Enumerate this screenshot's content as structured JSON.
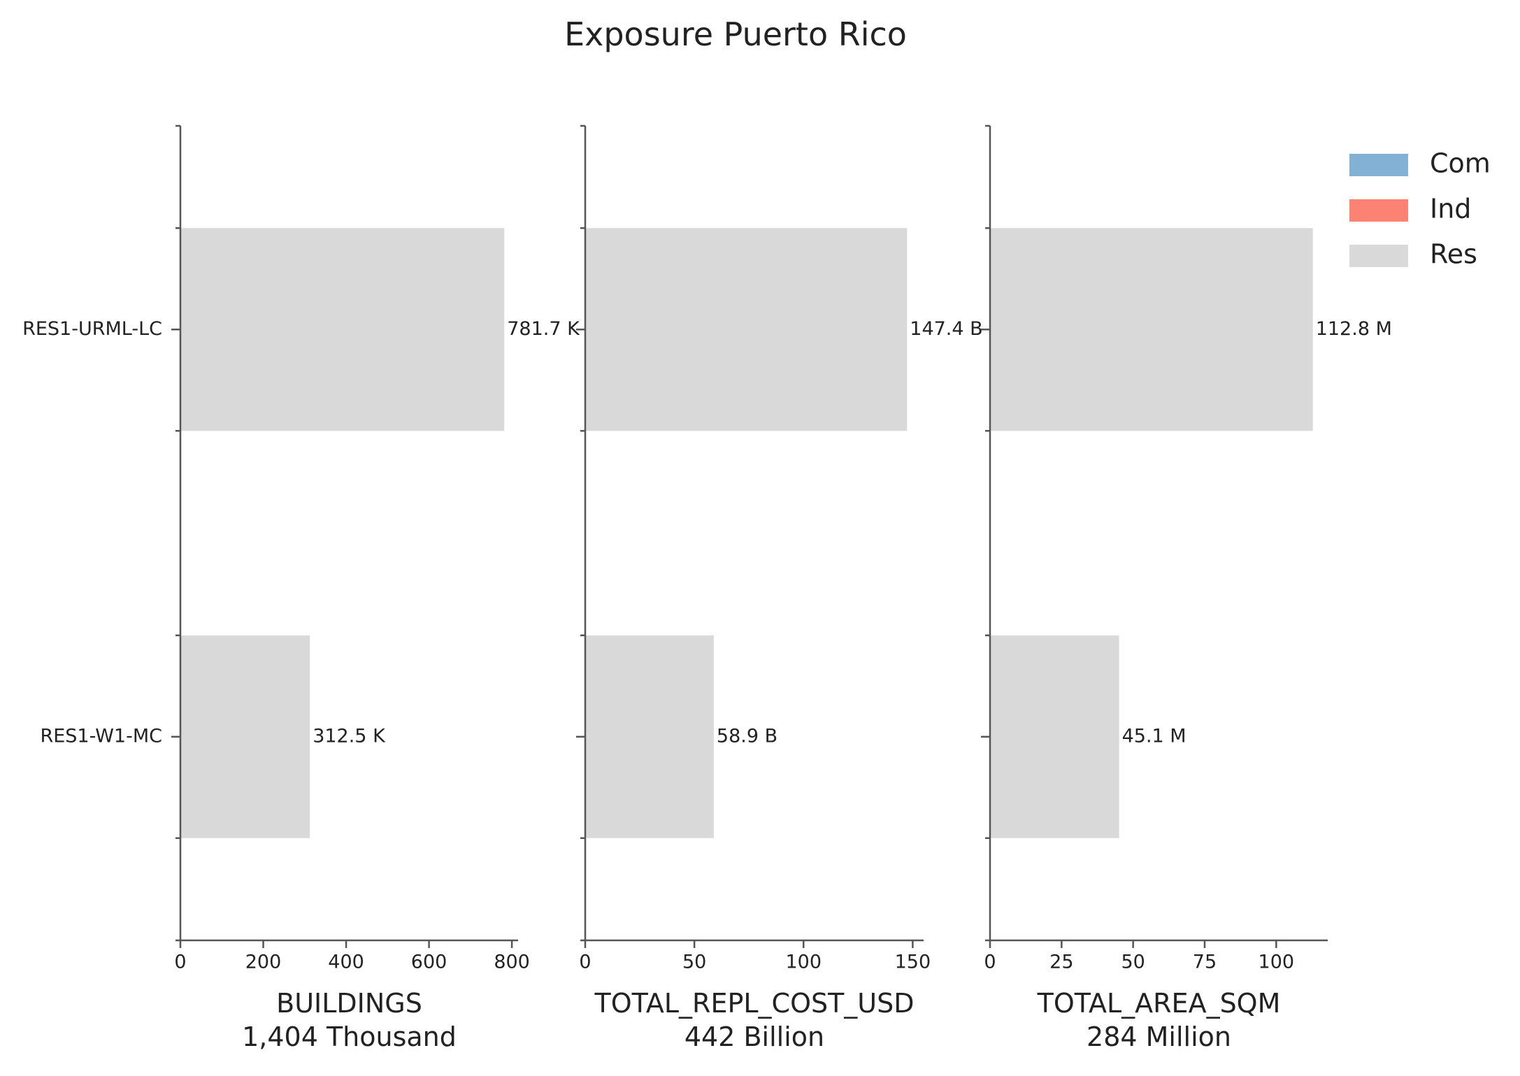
{
  "chart_data": {
    "type": "bar",
    "orientation": "horizontal",
    "title": "Exposure Puerto Rico",
    "categories": [
      "RES1-URML-LC",
      "RES1-W1-MC"
    ],
    "legend": {
      "placement": "top-right",
      "entries": [
        {
          "name": "Com",
          "color": "#82b1d4"
        },
        {
          "name": "Ind",
          "color": "#fc8373"
        },
        {
          "name": "Res",
          "color": "#d9d9d9"
        }
      ]
    },
    "panels": [
      {
        "xlabel": "BUILDINGS",
        "total": "1,404 Thousand",
        "xlim": [
          0,
          815
        ],
        "ticks": [
          0,
          200,
          400,
          600,
          800
        ],
        "tick_labels": [
          "0",
          "200",
          "400",
          "600",
          "800"
        ],
        "series": [
          {
            "name": "Res",
            "values": [
              781.7,
              312.5
            ]
          }
        ],
        "data_labels": [
          "781.7 K",
          "312.5 K"
        ]
      },
      {
        "xlabel": "TOTAL_REPL_COST_USD",
        "total": "442 Billion",
        "xlim": [
          0,
          155
        ],
        "ticks": [
          0,
          50,
          100,
          150
        ],
        "tick_labels": [
          "0",
          "50",
          "100",
          "150"
        ],
        "series": [
          {
            "name": "Res",
            "values": [
              147.4,
              58.9
            ]
          }
        ],
        "data_labels": [
          "147.4 B",
          "58.9 B"
        ]
      },
      {
        "xlabel": "TOTAL_AREA_SQM",
        "total": "284 Million",
        "xlim": [
          0,
          118
        ],
        "ticks": [
          0,
          25,
          50,
          75,
          100
        ],
        "tick_labels": [
          "0",
          "25",
          "50",
          "75",
          "100"
        ],
        "series": [
          {
            "name": "Res",
            "values": [
              112.8,
              45.1
            ]
          }
        ],
        "data_labels": [
          "112.8 M",
          "45.1 M"
        ]
      }
    ],
    "colors": {
      "axis": "#555555",
      "text": "#222222"
    },
    "grid": false
  }
}
